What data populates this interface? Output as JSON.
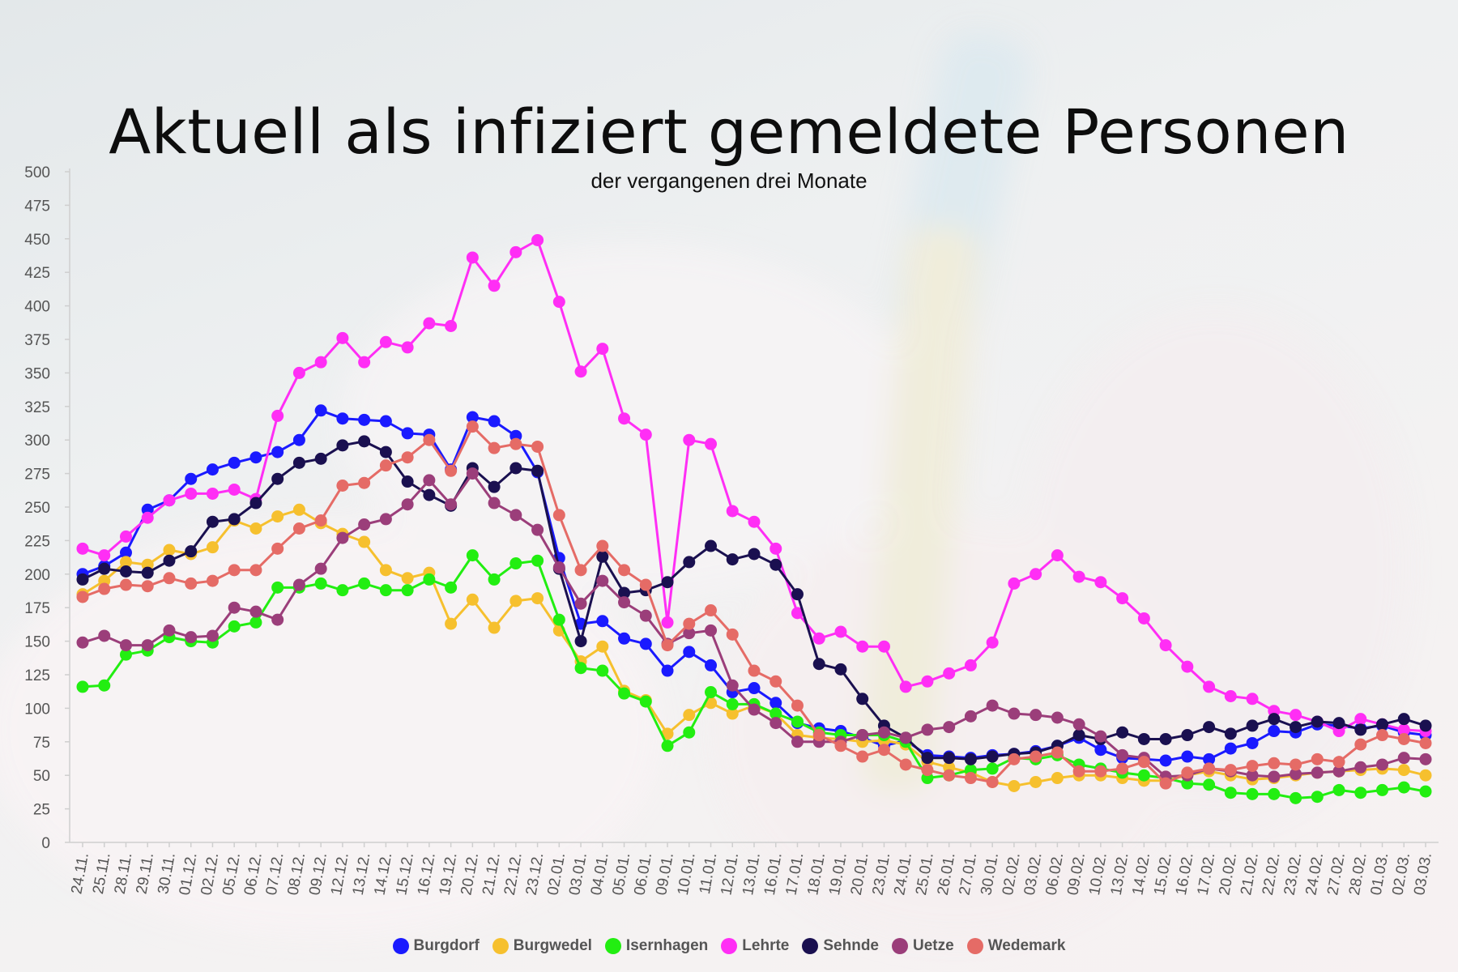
{
  "chart_data": {
    "type": "line",
    "title": "Aktuell als infiziert gemeldete Personen",
    "subtitle": "der vergangenen drei Monate",
    "ylim": [
      0,
      500
    ],
    "yticks": [
      0,
      25,
      50,
      75,
      100,
      125,
      150,
      175,
      200,
      225,
      250,
      275,
      300,
      325,
      350,
      375,
      400,
      425,
      450,
      475,
      500
    ],
    "grid": false,
    "legend_position": "bottom",
    "categories": [
      "24.11.",
      "25.11.",
      "28.11.",
      "29.11.",
      "30.11.",
      "01.12.",
      "02.12.",
      "05.12.",
      "06.12.",
      "07.12.",
      "08.12.",
      "09.12.",
      "12.12.",
      "13.12.",
      "14.12.",
      "15.12.",
      "16.12.",
      "19.12.",
      "20.12.",
      "21.12.",
      "22.12.",
      "23.12.",
      "02.01.",
      "03.01.",
      "04.01.",
      "05.01.",
      "06.01.",
      "09.01.",
      "10.01.",
      "11.01.",
      "12.01.",
      "13.01.",
      "16.01.",
      "17.01.",
      "18.01.",
      "19.01.",
      "20.01.",
      "23.01.",
      "24.01.",
      "25.01.",
      "26.01.",
      "27.01.",
      "30.01.",
      "02.02.",
      "03.02.",
      "06.02.",
      "09.02.",
      "10.02.",
      "13.02.",
      "14.02.",
      "15.02.",
      "16.02.",
      "17.02.",
      "20.02.",
      "21.02.",
      "22.02.",
      "23.02.",
      "24.02.",
      "27.02.",
      "28.02.",
      "01.03.",
      "02.03.",
      "03.03."
    ],
    "series": [
      {
        "name": "Burgdorf",
        "color": "#1a1aff",
        "values": [
          200,
          206,
          216,
          248,
          255,
          271,
          278,
          283,
          287,
          291,
          300,
          322,
          316,
          315,
          314,
          305,
          304,
          278,
          317,
          314,
          303,
          276,
          212,
          163,
          165,
          152,
          148,
          128,
          142,
          132,
          112,
          115,
          104,
          89,
          85,
          83,
          78,
          72,
          76,
          65,
          64,
          63,
          65,
          66,
          68,
          72,
          78,
          69,
          63,
          62,
          61,
          64,
          62,
          70,
          74,
          83,
          82,
          88,
          87,
          85,
          87,
          82,
          80
        ]
      },
      {
        "name": "Burgwedel",
        "color": "#f6c02e",
        "values": [
          185,
          195,
          209,
          207,
          218,
          215,
          220,
          240,
          234,
          243,
          248,
          238,
          230,
          224,
          203,
          197,
          201,
          163,
          181,
          160,
          180,
          182,
          158,
          135,
          146,
          113,
          106,
          81,
          95,
          104,
          96,
          102,
          96,
          80,
          78,
          77,
          75,
          76,
          73,
          60,
          56,
          52,
          45,
          42,
          45,
          48,
          50,
          50,
          48,
          46,
          46,
          50,
          53,
          50,
          47,
          48,
          50,
          52,
          53,
          54,
          55,
          54,
          50
        ]
      },
      {
        "name": "Isernhagen",
        "color": "#22ee11",
        "values": [
          116,
          117,
          140,
          143,
          153,
          150,
          149,
          161,
          164,
          190,
          190,
          193,
          188,
          193,
          188,
          188,
          196,
          190,
          214,
          196,
          208,
          210,
          166,
          130,
          128,
          111,
          105,
          72,
          82,
          112,
          103,
          103,
          96,
          90,
          82,
          80,
          80,
          80,
          75,
          48,
          50,
          54,
          55,
          63,
          62,
          65,
          58,
          55,
          52,
          50,
          48,
          44,
          43,
          37,
          36,
          36,
          33,
          34,
          39,
          37,
          39,
          41,
          38
        ]
      },
      {
        "name": "Lehrte",
        "color": "#ff2ef5",
        "values": [
          219,
          214,
          228,
          242,
          255,
          260,
          260,
          263,
          256,
          318,
          350,
          358,
          376,
          358,
          373,
          369,
          387,
          385,
          436,
          415,
          440,
          449,
          403,
          351,
          368,
          316,
          304,
          164,
          300,
          297,
          247,
          239,
          219,
          171,
          152,
          157,
          146,
          146,
          116,
          120,
          126,
          132,
          149,
          193,
          200,
          214,
          198,
          194,
          182,
          167,
          147,
          131,
          116,
          109,
          107,
          98,
          95,
          90,
          83,
          92,
          88,
          84,
          83
        ]
      },
      {
        "name": "Sehnde",
        "color": "#1a1050",
        "values": [
          196,
          204,
          202,
          201,
          210,
          217,
          239,
          241,
          253,
          271,
          283,
          286,
          296,
          299,
          291,
          269,
          259,
          251,
          279,
          265,
          279,
          277,
          204,
          150,
          213,
          186,
          188,
          194,
          209,
          221,
          211,
          215,
          207,
          185,
          133,
          129,
          107,
          87,
          78,
          63,
          63,
          62,
          64,
          66,
          67,
          72,
          80,
          77,
          82,
          77,
          77,
          80,
          86,
          81,
          87,
          92,
          86,
          90,
          89,
          84,
          88,
          92,
          87
        ]
      },
      {
        "name": "Uetze",
        "color": "#9b3e7a",
        "values": [
          149,
          154,
          147,
          147,
          158,
          153,
          154,
          175,
          172,
          166,
          192,
          204,
          227,
          237,
          241,
          252,
          270,
          252,
          275,
          253,
          244,
          233,
          205,
          178,
          195,
          179,
          169,
          148,
          156,
          158,
          117,
          99,
          89,
          75,
          75,
          75,
          80,
          82,
          78,
          84,
          86,
          94,
          102,
          96,
          95,
          93,
          88,
          79,
          65,
          63,
          49,
          50,
          55,
          53,
          50,
          49,
          51,
          52,
          53,
          56,
          58,
          63,
          62
        ]
      },
      {
        "name": "Wedemark",
        "color": "#e56b66",
        "values": [
          183,
          189,
          192,
          191,
          197,
          193,
          195,
          203,
          203,
          219,
          234,
          240,
          266,
          268,
          281,
          287,
          300,
          277,
          310,
          294,
          297,
          295,
          244,
          203,
          221,
          203,
          192,
          147,
          163,
          173,
          155,
          128,
          120,
          102,
          80,
          72,
          64,
          69,
          58,
          54,
          50,
          48,
          45,
          62,
          64,
          67,
          53,
          53,
          55,
          60,
          44,
          52,
          55,
          54,
          57,
          59,
          58,
          62,
          60,
          73,
          80,
          77,
          74
        ]
      }
    ]
  }
}
